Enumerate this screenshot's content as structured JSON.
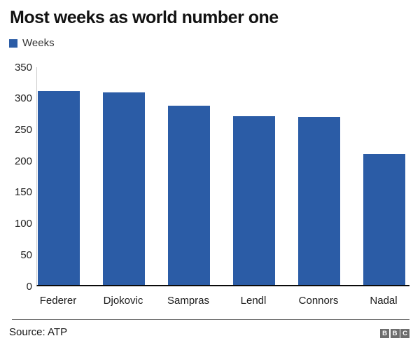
{
  "header": {
    "title": "Most weeks as world number one"
  },
  "legend": {
    "label": "Weeks",
    "swatch_color": "#2b5ca6"
  },
  "chart_data": {
    "type": "bar",
    "title": "Most weeks as world number one",
    "categories": [
      "Federer",
      "Djokovic",
      "Sampras",
      "Lendl",
      "Connors",
      "Nadal"
    ],
    "values": [
      310,
      307,
      286,
      270,
      268,
      209
    ],
    "series_name": "Weeks",
    "xlabel": "",
    "ylabel": "Weeks",
    "ylim": [
      0,
      350
    ],
    "yticks": [
      0,
      50,
      100,
      150,
      200,
      250,
      300,
      350
    ],
    "bar_color": "#2b5ca6",
    "axis_line_color": "#0a0a0a",
    "grid": false,
    "legend_position": "top-left"
  },
  "footer": {
    "source": "Source: ATP",
    "logo_letters": [
      "B",
      "B",
      "C"
    ]
  }
}
